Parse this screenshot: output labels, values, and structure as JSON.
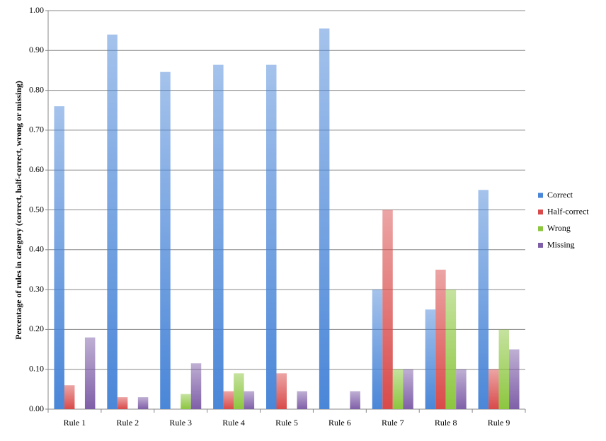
{
  "chart_data": {
    "type": "bar",
    "y_label": "Percentage of rules in category (correct, half-correct, wrong or missing)",
    "categories": [
      "Rule 1",
      "Rule 2",
      "Rule 3",
      "Rule 4",
      "Rule 5",
      "Rule 6",
      "Rule 7",
      "Rule 8",
      "Rule 9"
    ],
    "series": [
      {
        "name": "Correct",
        "color": "#4a86d8",
        "values": [
          0.76,
          0.94,
          0.846,
          0.864,
          0.864,
          0.955,
          0.3,
          0.25,
          0.55
        ]
      },
      {
        "name": "Half-correct",
        "color": "#d94a4a",
        "values": [
          0.06,
          0.03,
          0,
          0.045,
          0.09,
          0,
          0.5,
          0.35,
          0.1
        ]
      },
      {
        "name": "Wrong",
        "color": "#8cc63f",
        "values": [
          0,
          0,
          0.038,
          0.09,
          0,
          0,
          0.1,
          0.3,
          0.2
        ]
      },
      {
        "name": "Missing",
        "color": "#7f5fa8",
        "values": [
          0.18,
          0.03,
          0.115,
          0.045,
          0.045,
          0.045,
          0.1,
          0.1,
          0.15
        ]
      }
    ],
    "ylim": [
      0,
      1
    ],
    "yticks": [
      {
        "value": 0,
        "label": "0.00"
      },
      {
        "value": 0.1,
        "label": "0.10"
      },
      {
        "value": 0.2,
        "label": "0.20"
      },
      {
        "value": 0.3,
        "label": "0.30"
      },
      {
        "value": 0.4,
        "label": "0.40"
      },
      {
        "value": 0.5,
        "label": "0.50"
      },
      {
        "value": 0.6,
        "label": "0.60"
      },
      {
        "value": 0.7,
        "label": "0.70"
      },
      {
        "value": 0.8,
        "label": "0.80"
      },
      {
        "value": 0.9,
        "label": "0.90"
      },
      {
        "value": 1,
        "label": "1.00"
      }
    ],
    "grid": true,
    "legend": "right"
  }
}
